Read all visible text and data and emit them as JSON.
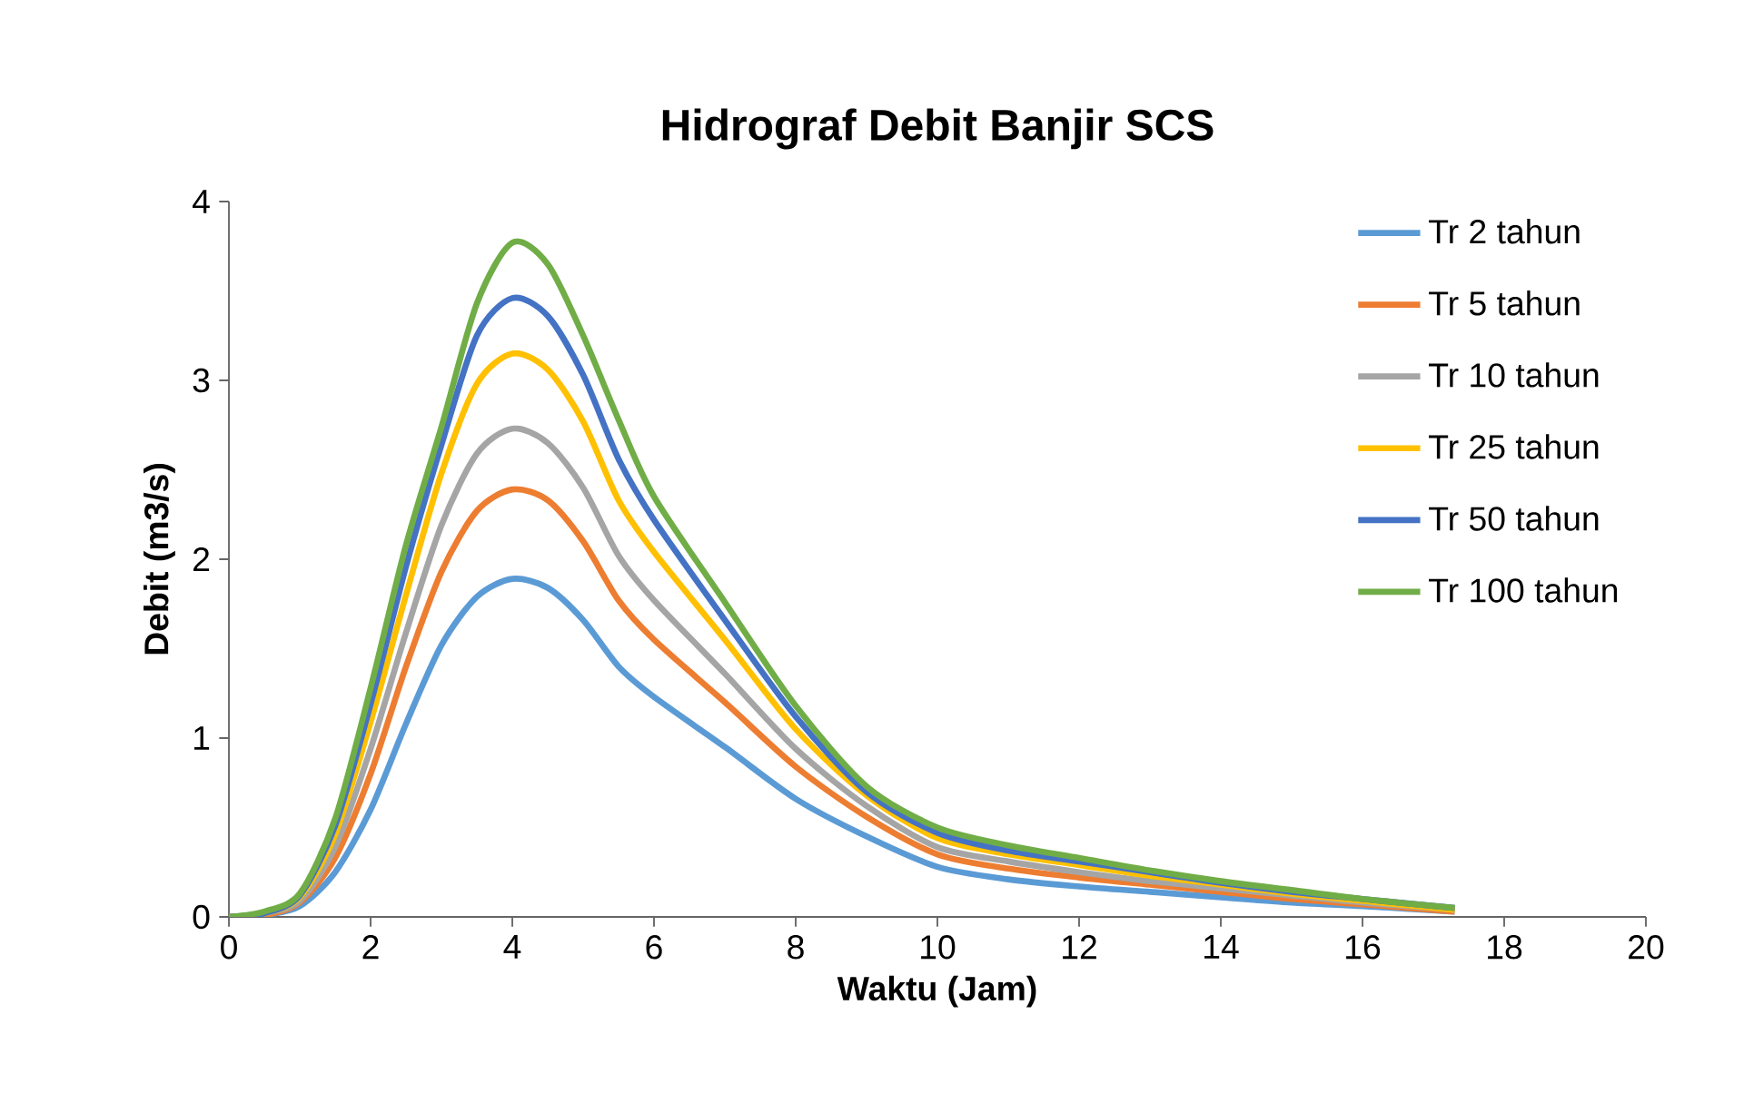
{
  "chart_data": {
    "type": "line",
    "title": "Hidrograf Debit Banjir SCS",
    "xlabel": "Waktu (Jam)",
    "ylabel": "Debit  (m3/s)",
    "x": [
      0,
      0.5,
      1,
      1.5,
      2,
      2.5,
      3,
      3.5,
      4,
      4.5,
      5,
      5.5,
      6,
      7,
      8,
      9,
      10,
      11,
      12,
      13,
      14,
      15,
      16,
      17.3
    ],
    "xlim": [
      0,
      20
    ],
    "xticks": [
      0,
      2,
      4,
      6,
      8,
      10,
      12,
      14,
      16,
      18,
      20
    ],
    "ylim": [
      0,
      4
    ],
    "yticks": [
      0,
      1,
      2,
      3,
      4
    ],
    "grid": false,
    "legend": "top right",
    "marker": "none",
    "line_style": "solid",
    "series": [
      {
        "name": "Tr 2 tahun",
        "color": "#5b9bd5",
        "values": [
          0,
          0.01,
          0.06,
          0.25,
          0.6,
          1.08,
          1.52,
          1.79,
          1.89,
          1.84,
          1.66,
          1.4,
          1.23,
          0.95,
          0.66,
          0.45,
          0.28,
          0.21,
          0.17,
          0.14,
          0.11,
          0.08,
          0.06,
          0.03
        ]
      },
      {
        "name": "Tr 5 tahun",
        "color": "#ed7d31",
        "values": [
          0,
          0.01,
          0.08,
          0.33,
          0.8,
          1.4,
          1.93,
          2.27,
          2.39,
          2.33,
          2.1,
          1.77,
          1.55,
          1.2,
          0.84,
          0.56,
          0.35,
          0.27,
          0.22,
          0.18,
          0.14,
          0.1,
          0.07,
          0.03
        ]
      },
      {
        "name": "Tr 10 tahun",
        "color": "#a5a5a5",
        "values": [
          0,
          0.02,
          0.09,
          0.39,
          0.94,
          1.59,
          2.19,
          2.59,
          2.73,
          2.65,
          2.4,
          2.02,
          1.77,
          1.36,
          0.94,
          0.62,
          0.39,
          0.31,
          0.25,
          0.2,
          0.16,
          0.12,
          0.08,
          0.04
        ]
      },
      {
        "name": "Tr 25 tahun",
        "color": "#ffc000",
        "values": [
          0,
          0.02,
          0.11,
          0.46,
          1.09,
          1.8,
          2.48,
          2.98,
          3.15,
          3.06,
          2.77,
          2.33,
          2.04,
          1.55,
          1.05,
          0.68,
          0.44,
          0.35,
          0.29,
          0.23,
          0.18,
          0.13,
          0.09,
          0.04
        ]
      },
      {
        "name": "Tr 50 tahun",
        "color": "#4472c4",
        "values": [
          0,
          0.02,
          0.12,
          0.51,
          1.19,
          1.96,
          2.64,
          3.25,
          3.46,
          3.36,
          3.03,
          2.56,
          2.22,
          1.66,
          1.12,
          0.7,
          0.47,
          0.37,
          0.31,
          0.25,
          0.19,
          0.14,
          0.1,
          0.05
        ]
      },
      {
        "name": "Tr 100 tahun",
        "color": "#70ad47",
        "values": [
          0,
          0.03,
          0.13,
          0.55,
          1.28,
          2.08,
          2.74,
          3.43,
          3.77,
          3.65,
          3.25,
          2.78,
          2.35,
          1.76,
          1.18,
          0.73,
          0.5,
          0.4,
          0.33,
          0.26,
          0.2,
          0.15,
          0.1,
          0.05
        ]
      }
    ]
  }
}
